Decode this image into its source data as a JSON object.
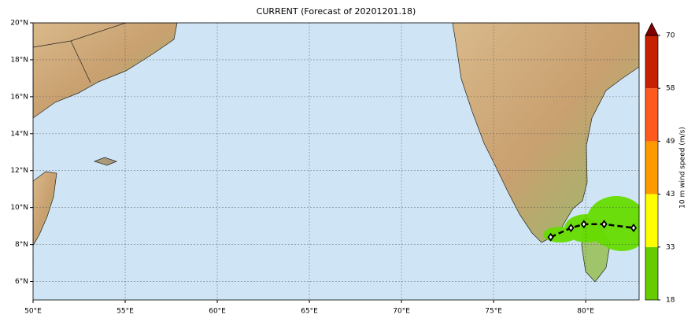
{
  "chart_data": {
    "type": "map",
    "title": "CURRENT (Forecast of 20201201.18)",
    "xlim": [
      50,
      82.9
    ],
    "ylim": [
      5,
      20
    ],
    "xticks": [
      {
        "value": 50,
        "label": "50°E"
      },
      {
        "value": 55,
        "label": "55°E"
      },
      {
        "value": 60,
        "label": "60°E"
      },
      {
        "value": 65,
        "label": "65°E"
      },
      {
        "value": 70,
        "label": "70°E"
      },
      {
        "value": 75,
        "label": "75°E"
      },
      {
        "value": 80,
        "label": "80°E"
      }
    ],
    "yticks": [
      {
        "value": 6,
        "label": "6°N"
      },
      {
        "value": 8,
        "label": "8°N"
      },
      {
        "value": 10,
        "label": "10°N"
      },
      {
        "value": 12,
        "label": "12°N"
      },
      {
        "value": 14,
        "label": "14°N"
      },
      {
        "value": 16,
        "label": "16°N"
      },
      {
        "value": 18,
        "label": "18°N"
      },
      {
        "value": 20,
        "label": "20°N"
      }
    ],
    "grid": true,
    "series": [
      {
        "color": "#000000",
        "x": [
          78.1,
          79.2,
          79.9,
          81.0,
          82.6
        ],
        "values": [
          8.4,
          8.9,
          9.1,
          9.1,
          8.9
        ]
      }
    ],
    "colorbar": {
      "label": "10 m wind speed (m/s)",
      "ticks": [
        18,
        33,
        43,
        49,
        58,
        70
      ],
      "colors": [
        "#66cc00",
        "#ffff00",
        "#ff9900",
        "#ff5a1e",
        "#c62000"
      ],
      "extend_color": "#800000"
    }
  }
}
